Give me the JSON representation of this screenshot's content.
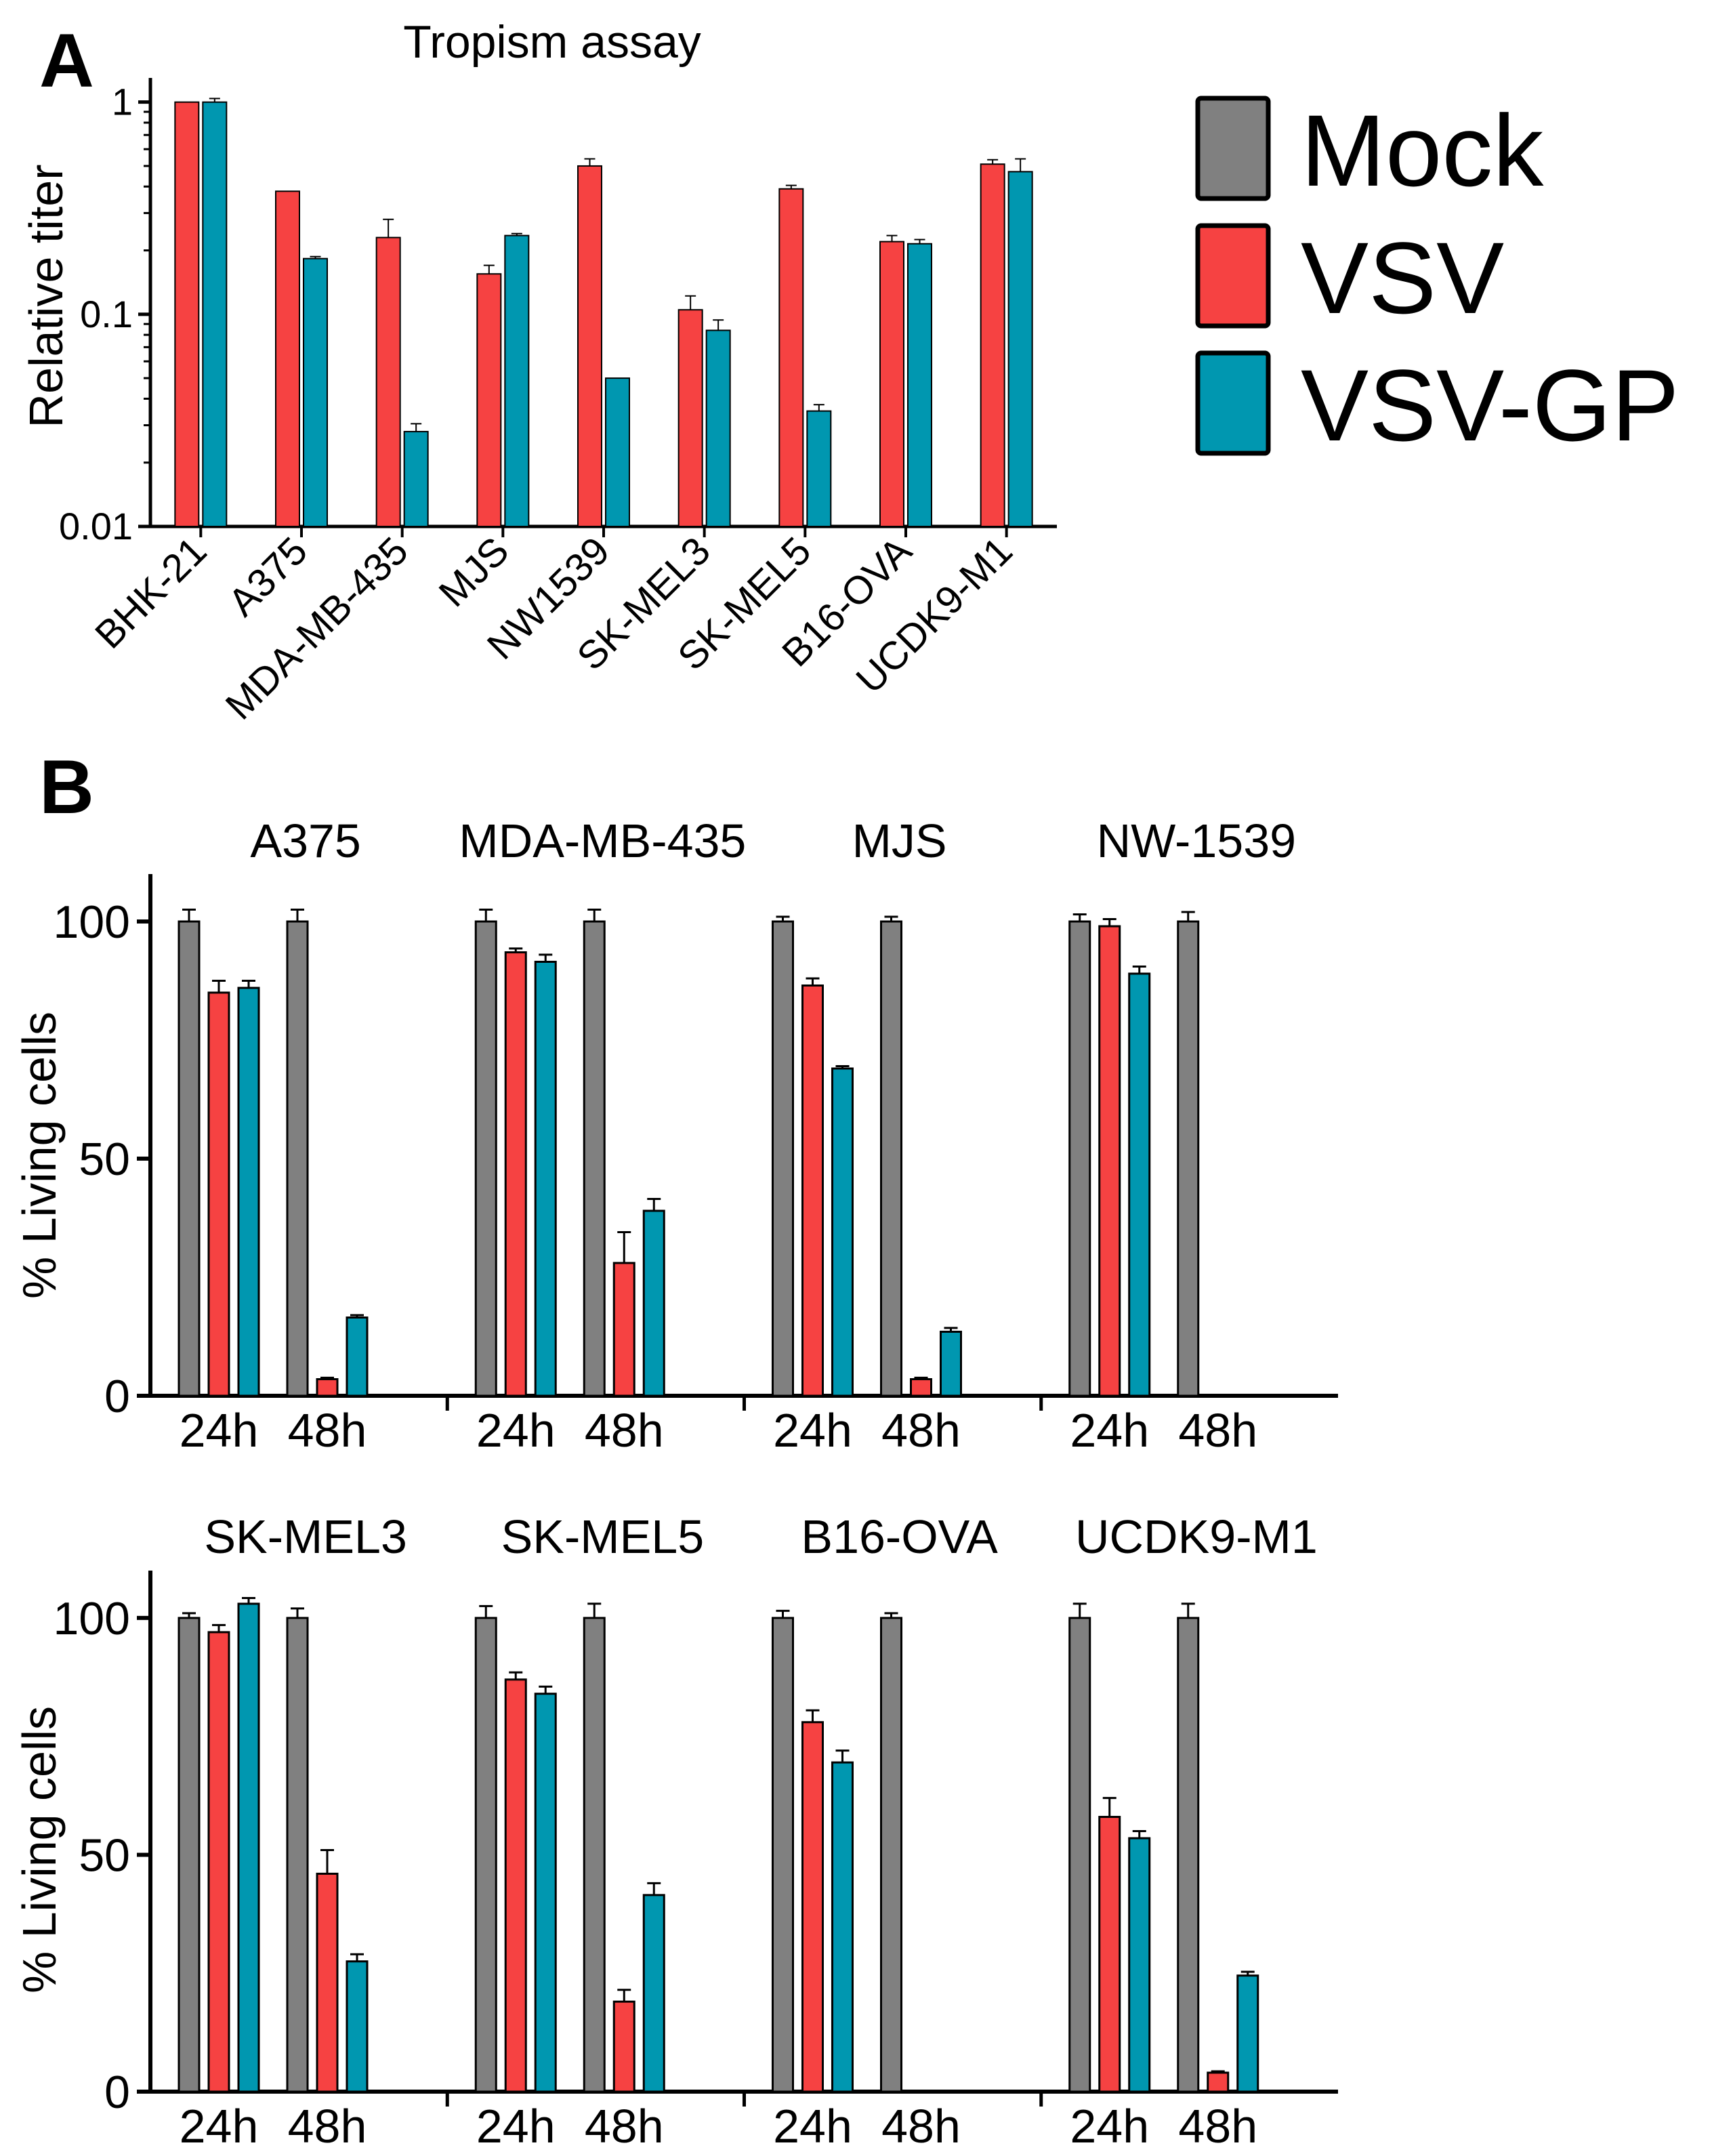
{
  "panel_labels": {
    "a": "A",
    "b": "B"
  },
  "colors": {
    "Mock": "#808080",
    "VSV": "#f64242",
    "VSV-GP": "#0097b0"
  },
  "legend": [
    "Mock",
    "VSV",
    "VSV-GP"
  ],
  "chart_data": [
    {
      "type": "bar",
      "title": "Tropism assay",
      "ylabel": "Relative titer",
      "xlabel": "",
      "yscale": "log",
      "ylim": [
        0.01,
        1.3
      ],
      "yticks": [
        1,
        0.1,
        0.01
      ],
      "ytick_labels": [
        "1",
        "0.1",
        "0.01"
      ],
      "categories": [
        "BHK-21",
        "A375",
        "MDA-MB-435",
        "MJS",
        "NW1539",
        "SK-MEL3",
        "SK-MEL5",
        "B16-OVA",
        "UCDK9-M1"
      ],
      "series": [
        {
          "name": "VSV",
          "values": [
            1.0,
            0.38,
            0.23,
            0.155,
            0.5,
            0.105,
            0.39,
            0.22,
            0.51
          ],
          "errors": [
            0,
            0,
            0.05,
            0.015,
            0.04,
            0.017,
            0.015,
            0.015,
            0.025
          ]
        },
        {
          "name": "VSV-GP",
          "values": [
            1.0,
            0.183,
            0.028,
            0.235,
            0.05,
            0.084,
            0.035,
            0.215,
            0.47
          ],
          "errors": [
            0.04,
            0.004,
            0.0025,
            0.005,
            0,
            0.01,
            0.0025,
            0.01,
            0.07
          ]
        }
      ]
    },
    {
      "type": "bar",
      "panel": "B-top",
      "ylabel": "% Living cells",
      "ylim": [
        0,
        110
      ],
      "yticks": [
        0,
        50,
        100
      ],
      "timepoints": [
        "24h",
        "48h"
      ],
      "groups": [
        {
          "name": "A375",
          "series": {
            "Mock": [
              100,
              100
            ],
            "VSV": [
              85,
              3.5
            ],
            "VSV-GP": [
              86,
              16.5
            ]
          },
          "errors": {
            "Mock": [
              2.5,
              2.5
            ],
            "VSV": [
              2.5,
              0.3
            ],
            "VSV-GP": [
              1.5,
              0.5
            ]
          }
        },
        {
          "name": "MDA-MB-435",
          "series": {
            "Mock": [
              100,
              100
            ],
            "VSV": [
              93.5,
              28
            ],
            "VSV-GP": [
              91.5,
              39
            ]
          },
          "errors": {
            "Mock": [
              2.5,
              2.5
            ],
            "VSV": [
              0.8,
              6.5
            ],
            "VSV-GP": [
              1.5,
              2.5
            ]
          }
        },
        {
          "name": "MJS",
          "series": {
            "Mock": [
              100,
              100
            ],
            "VSV": [
              86.5,
              3.5
            ],
            "VSV-GP": [
              69,
              13.5
            ]
          },
          "errors": {
            "Mock": [
              1,
              1
            ],
            "VSV": [
              1.5,
              0.3
            ],
            "VSV-GP": [
              0.5,
              0.8
            ]
          }
        },
        {
          "name": "NW-1539",
          "series": {
            "Mock": [
              100,
              100
            ],
            "VSV": [
              99,
              null
            ],
            "VSV-GP": [
              89,
              null
            ]
          },
          "errors": {
            "Mock": [
              1.5,
              2
            ],
            "VSV": [
              1.5,
              null
            ],
            "VSV-GP": [
              1.5,
              null
            ]
          }
        }
      ]
    },
    {
      "type": "bar",
      "panel": "B-bottom",
      "ylabel": "% Living cells",
      "ylim": [
        0,
        110
      ],
      "yticks": [
        0,
        50,
        100
      ],
      "timepoints": [
        "24h",
        "48h"
      ],
      "groups": [
        {
          "name": "SK-MEL3",
          "series": {
            "Mock": [
              100,
              100
            ],
            "VSV": [
              97,
              46
            ],
            "VSV-GP": [
              103,
              27.5
            ]
          },
          "errors": {
            "Mock": [
              1,
              2
            ],
            "VSV": [
              1.5,
              5
            ],
            "VSV-GP": [
              1.2,
              1.5
            ]
          }
        },
        {
          "name": "SK-MEL5",
          "series": {
            "Mock": [
              100,
              100
            ],
            "VSV": [
              87,
              19
            ],
            "VSV-GP": [
              84,
              41.5
            ]
          },
          "errors": {
            "Mock": [
              2.5,
              3
            ],
            "VSV": [
              1.5,
              2.5
            ],
            "VSV-GP": [
              1.5,
              2.5
            ]
          }
        },
        {
          "name": "B16-OVA",
          "series": {
            "Mock": [
              100,
              100
            ],
            "VSV": [
              78,
              null
            ],
            "VSV-GP": [
              69.5,
              null
            ]
          },
          "errors": {
            "Mock": [
              1.5,
              1
            ],
            "VSV": [
              2.5,
              null
            ],
            "VSV-GP": [
              2.5,
              null
            ]
          }
        },
        {
          "name": "UCDK9-M1",
          "series": {
            "Mock": [
              100,
              100
            ],
            "VSV": [
              58,
              4
            ],
            "VSV-GP": [
              53.5,
              24.5
            ]
          },
          "errors": {
            "Mock": [
              3,
              3
            ],
            "VSV": [
              4,
              0.3
            ],
            "VSV-GP": [
              1.5,
              0.8
            ]
          }
        }
      ]
    }
  ]
}
